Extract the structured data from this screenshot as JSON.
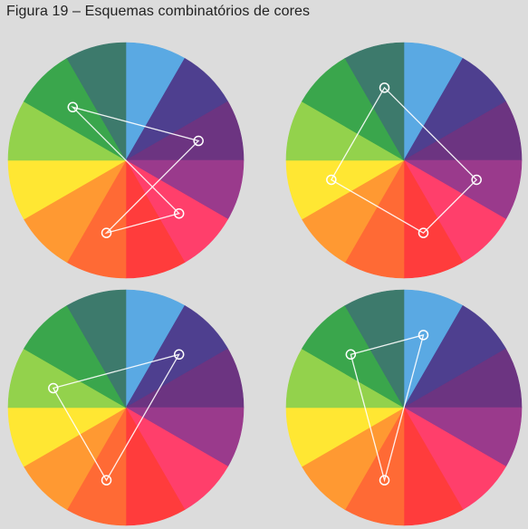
{
  "caption": "Figura 19 – Esquemas combinatórios de cores",
  "wheel_colors": [
    "#5aa9e3",
    "#4e3f8f",
    "#6c3481",
    "#9a3a8c",
    "#ff3f6b",
    "#ff3c3c",
    "#ff6a35",
    "#ff9932",
    "#ffe733",
    "#93d24c",
    "#3aa64c",
    "#3d7a6c"
  ],
  "schemes": [
    {
      "name": "scheme-top-left",
      "vertices": [
        10,
        4,
        6,
        2
      ]
    },
    {
      "name": "scheme-top-right",
      "vertices": [
        11,
        3,
        5,
        8
      ]
    },
    {
      "name": "scheme-bottom-left",
      "vertices": [
        1,
        6,
        9
      ]
    },
    {
      "name": "scheme-bottom-right",
      "vertices": [
        0,
        6,
        10
      ]
    }
  ]
}
